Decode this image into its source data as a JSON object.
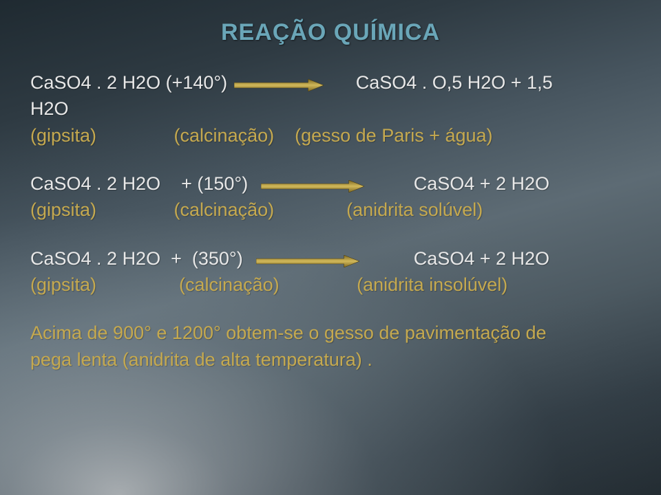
{
  "title": "REAÇÃO QUÍMICA",
  "colors": {
    "title": "#6aa6b8",
    "text_white": "#e8e8e8",
    "text_gold": "#c5a94f",
    "arrow_dark": "#7a6520",
    "arrow_light": "#d1b85a"
  },
  "arrow": {
    "width": 150,
    "height": 18
  },
  "reactions": [
    {
      "l_pre": "CaSO4 . 2 H2O (+140°) ",
      "l_post": "      CaSO4 . O,5 H2O + 1,5",
      "overflow": "H2O",
      "labels_pre": "(gipsita)               (calcinação)    ",
      "labels_post": "(gesso de Paris + água)",
      "narrow": true
    },
    {
      "l_pre": "CaSO4 . 2 H2O    + (150°)  ",
      "l_post": "         CaSO4 + 2 H2O",
      "overflow": "",
      "labels_pre": "(gipsita)               (calcinação)              ",
      "labels_post": "(anidrita solúvel)",
      "narrow": false
    },
    {
      "l_pre": "CaSO4 . 2 H2O  +  (350°)  ",
      "l_post": "          CaSO4 + 2 H2O",
      "overflow": "",
      "labels_pre": "(gipsita)                (calcinação)               ",
      "labels_post": "(anidrita insolúvel)",
      "narrow": false
    }
  ],
  "footer_l1": "Acima de 900° e 1200° obtem-se o gesso de pavimentação de",
  "footer_l2": "pega lenta (anidrita de alta temperatura) ."
}
